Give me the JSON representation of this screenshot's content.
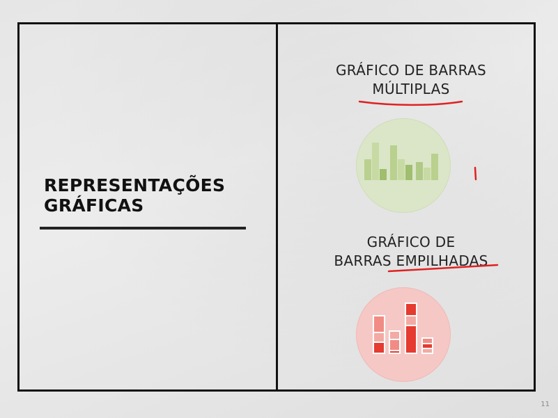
{
  "slide": {
    "left_title_line1": "REPRESENTAÇÕES",
    "left_title_line2": "GRÁFICAS",
    "section1": {
      "line1": "GRÁFICO DE BARRAS",
      "line2": "MÚLTIPLAS",
      "icon": "multiple-bar-chart-icon",
      "color": "#8fb25c"
    },
    "section2": {
      "line1": "GRÁFICO DE",
      "line2": "BARRAS EMPILHADAS",
      "icon": "stacked-bar-chart-icon",
      "color": "#e53b30"
    },
    "page_number": "11"
  },
  "colors": {
    "annotation": "#e02020",
    "frame": "#111111",
    "background": "#e6e6e6"
  }
}
